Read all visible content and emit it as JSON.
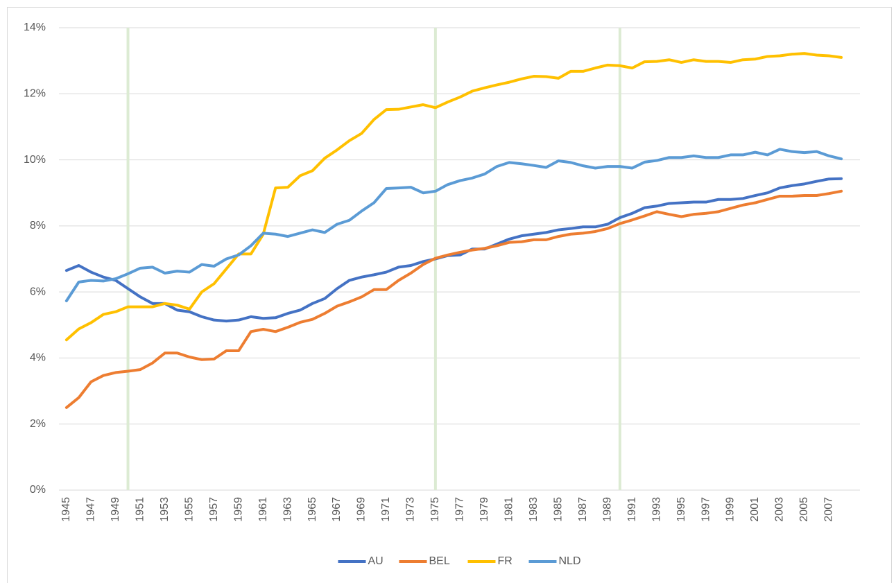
{
  "chart_data": {
    "type": "line",
    "categories": [
      "1945",
      null,
      "1947",
      null,
      "1949",
      null,
      "1951",
      null,
      "1953",
      null,
      "1955",
      null,
      "1957",
      null,
      "1959",
      null,
      "1961",
      null,
      "1963",
      null,
      "1965",
      null,
      "1967",
      null,
      "1969",
      null,
      "1971",
      null,
      "1973",
      null,
      "1975",
      null,
      "1977",
      null,
      "1979",
      null,
      "1981",
      null,
      "1983",
      null,
      "1985",
      null,
      "1987",
      null,
      "1989",
      null,
      "1991",
      null,
      "1993",
      null,
      "1995",
      null,
      "1997",
      null,
      "1999",
      null,
      "2001",
      null,
      "2003",
      null,
      "2005",
      null,
      "2007",
      null
    ],
    "series": [
      {
        "name": "AU",
        "color": "#4472c4",
        "values": [
          6.65,
          6.8,
          6.6,
          6.45,
          6.35,
          6.1,
          5.85,
          5.65,
          5.65,
          5.45,
          5.4,
          5.25,
          5.15,
          5.12,
          5.15,
          5.25,
          5.2,
          5.22,
          5.35,
          5.45,
          5.65,
          5.8,
          6.1,
          6.35,
          6.45,
          6.52,
          6.6,
          6.75,
          6.8,
          6.92,
          7.0,
          7.1,
          7.12,
          7.3,
          7.3,
          7.45,
          7.6,
          7.7,
          7.75,
          7.8,
          7.88,
          7.92,
          7.97,
          7.97,
          8.05,
          8.25,
          8.38,
          8.55,
          8.6,
          8.68,
          8.7,
          8.72,
          8.72,
          8.8,
          8.8,
          8.83,
          8.92,
          9.0,
          9.15,
          9.22,
          9.27,
          9.35,
          9.42,
          9.43
        ]
      },
      {
        "name": "BEL",
        "color": "#ed7d31",
        "values": [
          2.5,
          2.8,
          3.28,
          3.47,
          3.56,
          3.6,
          3.65,
          3.85,
          4.15,
          4.15,
          4.03,
          3.95,
          3.97,
          4.22,
          4.22,
          4.8,
          4.87,
          4.8,
          4.93,
          5.08,
          5.17,
          5.35,
          5.57,
          5.7,
          5.85,
          6.07,
          6.07,
          6.35,
          6.57,
          6.83,
          7.02,
          7.12,
          7.2,
          7.27,
          7.32,
          7.4,
          7.5,
          7.52,
          7.58,
          7.58,
          7.68,
          7.75,
          7.78,
          7.83,
          7.92,
          8.07,
          8.18,
          8.3,
          8.43,
          8.35,
          8.28,
          8.35,
          8.38,
          8.43,
          8.53,
          8.63,
          8.7,
          8.8,
          8.9,
          8.9,
          8.92,
          8.92,
          8.98,
          9.05
        ]
      },
      {
        "name": "FR",
        "color": "#ffc000",
        "values": [
          4.55,
          4.88,
          5.07,
          5.32,
          5.4,
          5.55,
          5.55,
          5.55,
          5.65,
          5.6,
          5.48,
          6.0,
          6.25,
          6.7,
          7.15,
          7.15,
          7.75,
          9.15,
          9.17,
          9.52,
          9.67,
          10.05,
          10.3,
          10.58,
          10.8,
          11.22,
          11.52,
          11.53,
          11.6,
          11.67,
          11.58,
          11.75,
          11.9,
          12.08,
          12.18,
          12.27,
          12.35,
          12.45,
          12.53,
          12.52,
          12.47,
          12.68,
          12.68,
          12.78,
          12.87,
          12.85,
          12.78,
          12.97,
          12.98,
          13.03,
          12.95,
          13.03,
          12.98,
          12.98,
          12.95,
          13.03,
          13.05,
          13.13,
          13.15,
          13.2,
          13.22,
          13.17,
          13.15,
          13.1
        ]
      },
      {
        "name": "NLD",
        "color": "#5b9bd5",
        "values": [
          5.73,
          6.3,
          6.35,
          6.33,
          6.4,
          6.55,
          6.72,
          6.75,
          6.57,
          6.63,
          6.6,
          6.83,
          6.78,
          7.0,
          7.12,
          7.4,
          7.78,
          7.75,
          7.68,
          7.78,
          7.88,
          7.8,
          8.05,
          8.17,
          8.45,
          8.7,
          9.13,
          9.15,
          9.17,
          9.0,
          9.05,
          9.25,
          9.37,
          9.45,
          9.57,
          9.8,
          9.92,
          9.88,
          9.83,
          9.77,
          9.97,
          9.92,
          9.82,
          9.75,
          9.8,
          9.8,
          9.75,
          9.93,
          9.98,
          10.07,
          10.07,
          10.12,
          10.07,
          10.07,
          10.15,
          10.15,
          10.23,
          10.15,
          10.32,
          10.25,
          10.22,
          10.25,
          10.12,
          10.03
        ]
      }
    ],
    "ylim": [
      0,
      14
    ],
    "yticks": [
      {
        "value": 0,
        "label": "0%"
      },
      {
        "value": 2,
        "label": "2%"
      },
      {
        "value": 4,
        "label": "4%"
      },
      {
        "value": 6,
        "label": "6%"
      },
      {
        "value": 8,
        "label": "8%"
      },
      {
        "value": 10,
        "label": "10%"
      },
      {
        "value": 12,
        "label": "12%"
      },
      {
        "value": 14,
        "label": "14%"
      }
    ],
    "grid": true,
    "legend": "bottom",
    "vertical_lines": {
      "color": "#dcebd3",
      "x": [
        1950,
        1975,
        1990
      ]
    }
  }
}
